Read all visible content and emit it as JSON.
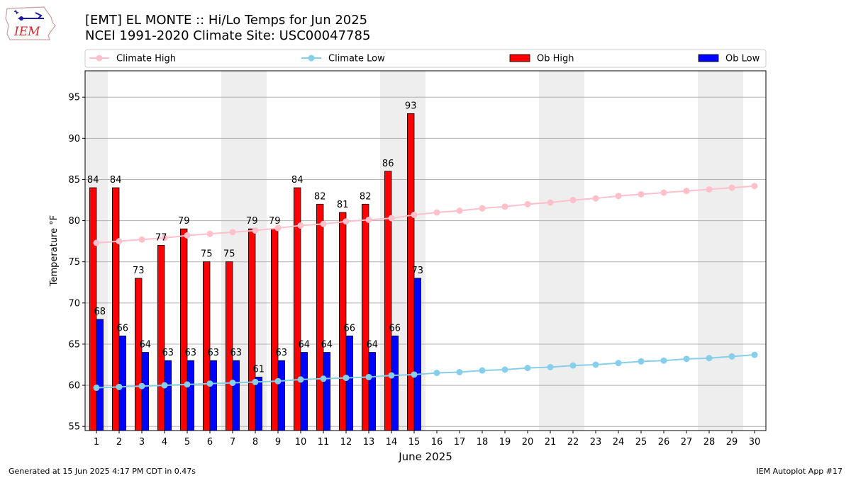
{
  "header": {
    "title_line1": "[EMT] EL MONTE :: Hi/Lo Temps for Jun 2025",
    "title_line2": "NCEI 1991-2020 Climate Site: USC00047785",
    "logo_text": "IEM"
  },
  "footer": {
    "left": "Generated at 15 Jun 2025 4:17 PM CDT in 0.47s",
    "right": "IEM Autoplot App #17"
  },
  "chart_data": {
    "type": "bar",
    "xlabel": "June 2025",
    "ylabel": "Temperature °F",
    "ylim": [
      54.5,
      98.2
    ],
    "yticks": [
      55,
      60,
      65,
      70,
      75,
      80,
      85,
      90,
      95
    ],
    "days": [
      1,
      2,
      3,
      4,
      5,
      6,
      7,
      8,
      9,
      10,
      11,
      12,
      13,
      14,
      15,
      16,
      17,
      18,
      19,
      20,
      21,
      22,
      23,
      24,
      25,
      26,
      27,
      28,
      29,
      30
    ],
    "weekend_days": [
      1,
      7,
      8,
      14,
      15,
      21,
      22,
      28,
      29
    ],
    "grid": "horizontal",
    "legend_position": "top",
    "series": [
      {
        "name": "Climate High",
        "kind": "line",
        "color": "#ffc0cb",
        "values": [
          77.3,
          77.5,
          77.7,
          77.9,
          78.2,
          78.4,
          78.6,
          78.8,
          79.1,
          79.4,
          79.6,
          79.9,
          80.1,
          80.3,
          80.7,
          81.0,
          81.2,
          81.5,
          81.7,
          82.0,
          82.2,
          82.5,
          82.7,
          83.0,
          83.2,
          83.4,
          83.6,
          83.8,
          84.0,
          84.2
        ]
      },
      {
        "name": "Climate Low",
        "kind": "line",
        "color": "#87ceeb",
        "values": [
          59.7,
          59.8,
          59.9,
          60.0,
          60.1,
          60.2,
          60.3,
          60.4,
          60.5,
          60.7,
          60.8,
          60.9,
          61.0,
          61.2,
          61.3,
          61.5,
          61.6,
          61.8,
          61.9,
          62.1,
          62.2,
          62.4,
          62.5,
          62.7,
          62.9,
          63.0,
          63.2,
          63.3,
          63.5,
          63.7
        ]
      },
      {
        "name": "Ob High",
        "kind": "bar",
        "color": "#ff0000",
        "values": [
          84,
          84,
          73,
          77,
          79,
          75,
          75,
          79,
          79,
          84,
          82,
          81,
          82,
          86,
          93
        ]
      },
      {
        "name": "Ob Low",
        "kind": "bar",
        "color": "#0000ff",
        "values": [
          68,
          66,
          64,
          63,
          63,
          63,
          63,
          61,
          63,
          64,
          64,
          66,
          64,
          66,
          73
        ]
      }
    ]
  }
}
